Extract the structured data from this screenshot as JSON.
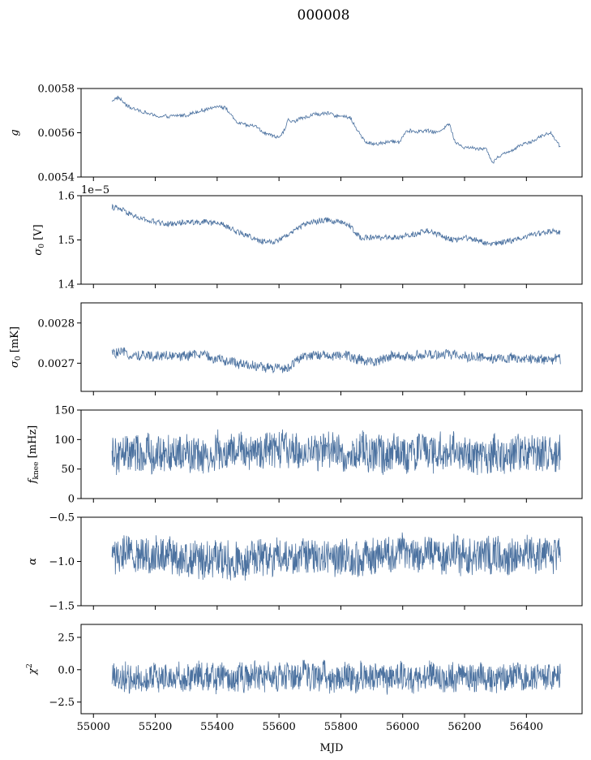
{
  "figure_title": "000008",
  "chart_data": [
    {
      "type": "line",
      "ylabel": "g",
      "xlabel": "",
      "x_range": [
        55060,
        56510
      ],
      "xlim": [
        54960,
        56580
      ],
      "ylim": [
        0.0054,
        0.0058
      ],
      "yticks": [
        "0.0054",
        "0.0056",
        "0.0058"
      ],
      "ytick_values": [
        0.0054,
        0.0056,
        0.0058
      ],
      "offset_text": "",
      "grid": false,
      "series_color": "#4c72a0",
      "trend": [
        [
          55060,
          0.005745
        ],
        [
          55080,
          0.00576
        ],
        [
          55110,
          0.00572
        ],
        [
          55140,
          0.005705
        ],
        [
          55180,
          0.005685
        ],
        [
          55220,
          0.00567
        ],
        [
          55260,
          0.005675
        ],
        [
          55300,
          0.00568
        ],
        [
          55340,
          0.005695
        ],
        [
          55380,
          0.00571
        ],
        [
          55400,
          0.005725
        ],
        [
          55430,
          0.00571
        ],
        [
          55460,
          0.00565
        ],
        [
          55500,
          0.00563
        ],
        [
          55520,
          0.005635
        ],
        [
          55560,
          0.005595
        ],
        [
          55590,
          0.00558
        ],
        [
          55610,
          0.00559
        ],
        [
          55630,
          0.005655
        ],
        [
          55650,
          0.00565
        ],
        [
          55680,
          0.00567
        ],
        [
          55720,
          0.005685
        ],
        [
          55760,
          0.005685
        ],
        [
          55800,
          0.005675
        ],
        [
          55830,
          0.00567
        ],
        [
          55850,
          0.00562
        ],
        [
          55880,
          0.005555
        ],
        [
          55920,
          0.00555
        ],
        [
          55960,
          0.00556
        ],
        [
          55990,
          0.00556
        ],
        [
          56010,
          0.00561
        ],
        [
          56040,
          0.005605
        ],
        [
          56080,
          0.00561
        ],
        [
          56110,
          0.0056
        ],
        [
          56150,
          0.00564
        ],
        [
          56170,
          0.00556
        ],
        [
          56200,
          0.005535
        ],
        [
          56240,
          0.00553
        ],
        [
          56270,
          0.00553
        ],
        [
          56290,
          0.005465
        ],
        [
          56310,
          0.005495
        ],
        [
          56340,
          0.00551
        ],
        [
          56380,
          0.005545
        ],
        [
          56420,
          0.005565
        ],
        [
          56450,
          0.005585
        ],
        [
          56480,
          0.0056
        ],
        [
          56510,
          0.005535
        ]
      ],
      "noise": 8e-06,
      "samples": 700
    },
    {
      "type": "line",
      "ylabel": "σ0 [V]",
      "xlabel": "",
      "x_range": [
        55060,
        56510
      ],
      "xlim": [
        54960,
        56580
      ],
      "ylim": [
        1.4,
        1.6
      ],
      "yticks": [
        "1.4",
        "1.5",
        "1.6"
      ],
      "ytick_values": [
        1.4,
        1.5,
        1.6
      ],
      "offset_text": "1e−5",
      "grid": false,
      "series_color": "#4c72a0",
      "trend": [
        [
          55060,
          1.575
        ],
        [
          55100,
          1.565
        ],
        [
          55150,
          1.548
        ],
        [
          55200,
          1.54
        ],
        [
          55260,
          1.535
        ],
        [
          55300,
          1.54
        ],
        [
          55360,
          1.54
        ],
        [
          55420,
          1.535
        ],
        [
          55460,
          1.52
        ],
        [
          55500,
          1.51
        ],
        [
          55540,
          1.496
        ],
        [
          55580,
          1.495
        ],
        [
          55620,
          1.51
        ],
        [
          55650,
          1.523
        ],
        [
          55700,
          1.54
        ],
        [
          55760,
          1.545
        ],
        [
          55800,
          1.54
        ],
        [
          55830,
          1.53
        ],
        [
          55860,
          1.507
        ],
        [
          55900,
          1.505
        ],
        [
          55950,
          1.505
        ],
        [
          56000,
          1.505
        ],
        [
          56040,
          1.515
        ],
        [
          56080,
          1.52
        ],
        [
          56120,
          1.51
        ],
        [
          56160,
          1.5
        ],
        [
          56200,
          1.505
        ],
        [
          56240,
          1.5
        ],
        [
          56280,
          1.49
        ],
        [
          56320,
          1.495
        ],
        [
          56360,
          1.5
        ],
        [
          56400,
          1.51
        ],
        [
          56440,
          1.515
        ],
        [
          56480,
          1.52
        ],
        [
          56510,
          1.515
        ]
      ],
      "noise": 0.006,
      "samples": 900
    },
    {
      "type": "line",
      "ylabel": "σ0 [mK]",
      "xlabel": "",
      "x_range": [
        55060,
        56510
      ],
      "xlim": [
        54960,
        56580
      ],
      "ylim": [
        0.00263,
        0.00285
      ],
      "yticks": [
        "0.0027",
        "0.0028"
      ],
      "ytick_values": [
        0.0027,
        0.0028
      ],
      "offset_text": "",
      "grid": false,
      "series_color": "#4c72a0",
      "trend": [
        [
          55060,
          0.002725
        ],
        [
          55150,
          0.00272
        ],
        [
          55250,
          0.002718
        ],
        [
          55350,
          0.002722
        ],
        [
          55420,
          0.002705
        ],
        [
          55480,
          0.0027
        ],
        [
          55520,
          0.002695
        ],
        [
          55560,
          0.002688
        ],
        [
          55600,
          0.00269
        ],
        [
          55620,
          0.002685
        ],
        [
          55660,
          0.002708
        ],
        [
          55720,
          0.00272
        ],
        [
          55800,
          0.00272
        ],
        [
          55860,
          0.00271
        ],
        [
          55900,
          0.002705
        ],
        [
          55960,
          0.002715
        ],
        [
          56050,
          0.002718
        ],
        [
          56150,
          0.002722
        ],
        [
          56250,
          0.002715
        ],
        [
          56350,
          0.00271
        ],
        [
          56450,
          0.002712
        ],
        [
          56510,
          0.00271
        ]
      ],
      "noise": 1.2e-05,
      "samples": 900
    },
    {
      "type": "line",
      "ylabel": "fknee [mHz]",
      "xlabel": "",
      "x_range": [
        55060,
        56510
      ],
      "xlim": [
        54960,
        56580
      ],
      "ylim": [
        0,
        150
      ],
      "yticks": [
        "0",
        "50",
        "100",
        "150"
      ],
      "ytick_values": [
        0,
        50,
        100,
        150
      ],
      "offset_text": "",
      "grid": false,
      "series_color": "#4c72a0",
      "trend": [
        [
          55060,
          72
        ],
        [
          55200,
          74
        ],
        [
          55400,
          76
        ],
        [
          55500,
          78
        ],
        [
          55600,
          82
        ],
        [
          55650,
          80
        ],
        [
          55800,
          78
        ],
        [
          55900,
          75
        ],
        [
          56000,
          78
        ],
        [
          56200,
          76
        ],
        [
          56240,
          70
        ],
        [
          56300,
          74
        ],
        [
          56400,
          80
        ],
        [
          56510,
          78
        ]
      ],
      "noise": 30,
      "samples": 1200
    },
    {
      "type": "line",
      "ylabel": "α",
      "xlabel": "",
      "x_range": [
        55060,
        56510
      ],
      "xlim": [
        54960,
        56580
      ],
      "ylim": [
        -1.5,
        -0.5
      ],
      "yticks": [
        "−1.5",
        "−1.0",
        "−0.5"
      ],
      "ytick_values": [
        -1.5,
        -1.0,
        -0.5
      ],
      "offset_text": "",
      "grid": false,
      "series_color": "#4c72a0",
      "trend": [
        [
          55060,
          -0.93
        ],
        [
          55200,
          -0.92
        ],
        [
          55400,
          -0.96
        ],
        [
          55500,
          -0.98
        ],
        [
          55600,
          -0.95
        ],
        [
          55800,
          -0.94
        ],
        [
          55900,
          -0.97
        ],
        [
          56000,
          -0.92
        ],
        [
          56200,
          -0.92
        ],
        [
          56300,
          -0.96
        ],
        [
          56400,
          -0.92
        ],
        [
          56510,
          -0.93
        ]
      ],
      "noise": 0.2,
      "samples": 1200
    },
    {
      "type": "line",
      "ylabel": "χ2",
      "xlabel": "MJD",
      "x_range": [
        55060,
        56510
      ],
      "xlim": [
        54960,
        56580
      ],
      "ylim": [
        -3.4,
        3.5
      ],
      "yticks": [
        "−2.5",
        "0.0",
        "2.5"
      ],
      "ytick_values": [
        -2.5,
        0.0,
        2.5
      ],
      "xticks": [
        "55000",
        "55200",
        "55400",
        "55600",
        "55800",
        "56000",
        "56200",
        "56400"
      ],
      "xtick_values": [
        55000,
        55200,
        55400,
        55600,
        55800,
        56000,
        56200,
        56400
      ],
      "offset_text": "",
      "grid": false,
      "series_color": "#4c72a0",
      "trend": [
        [
          55060,
          -0.6
        ],
        [
          55300,
          -0.55
        ],
        [
          55600,
          -0.6
        ],
        [
          55900,
          -0.6
        ],
        [
          56200,
          -0.55
        ],
        [
          56510,
          -0.6
        ]
      ],
      "noise": 1.05,
      "samples": 1200
    }
  ]
}
